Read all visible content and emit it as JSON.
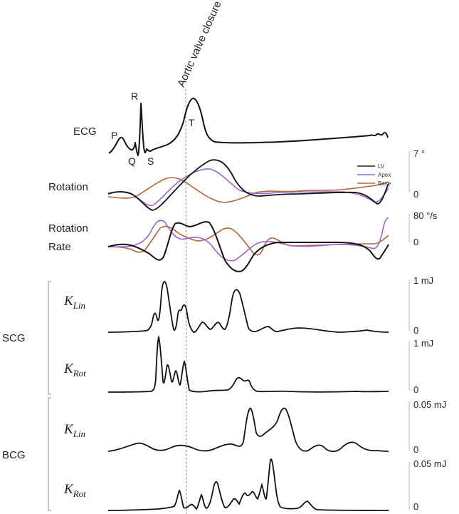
{
  "annotation": "Aortic valve closure",
  "ecg": {
    "label": "ECG",
    "waves": [
      "P",
      "Q",
      "R",
      "S",
      "T"
    ]
  },
  "rows": {
    "rotation": {
      "label": "Rotation",
      "scale_top": "7 °",
      "scale_bottom": "0"
    },
    "rotation_rate": {
      "label_line1": "Rotation",
      "label_line2": "Rate",
      "scale_top": "80 °/s",
      "scale_bottom": "0"
    },
    "scg_klin": {
      "symbol": "K",
      "sub": "Lin",
      "scale_top": "1 mJ",
      "scale_bottom": "0"
    },
    "scg_krot": {
      "symbol": "K",
      "sub": "Rot",
      "scale_top": "1 mJ",
      "scale_bottom": "0"
    },
    "bcg_klin": {
      "symbol": "K",
      "sub": "Lin",
      "scale_top": "0.05 mJ",
      "scale_bottom": "0"
    },
    "bcg_krot": {
      "symbol": "K",
      "sub": "Rot",
      "scale_top": "0.05 mJ",
      "scale_bottom": "0"
    }
  },
  "groups": {
    "scg": "SCG",
    "bcg": "BCG"
  },
  "legend": [
    {
      "name": "LV",
      "color": "#222222"
    },
    {
      "name": "Apex",
      "color": "#9966cc"
    },
    {
      "name": "Base",
      "color": "#b0653a"
    }
  ],
  "colors": {
    "trace": "#111111",
    "annotation_line": "#6b8fb8",
    "bracket": "#8fa6c4"
  }
}
